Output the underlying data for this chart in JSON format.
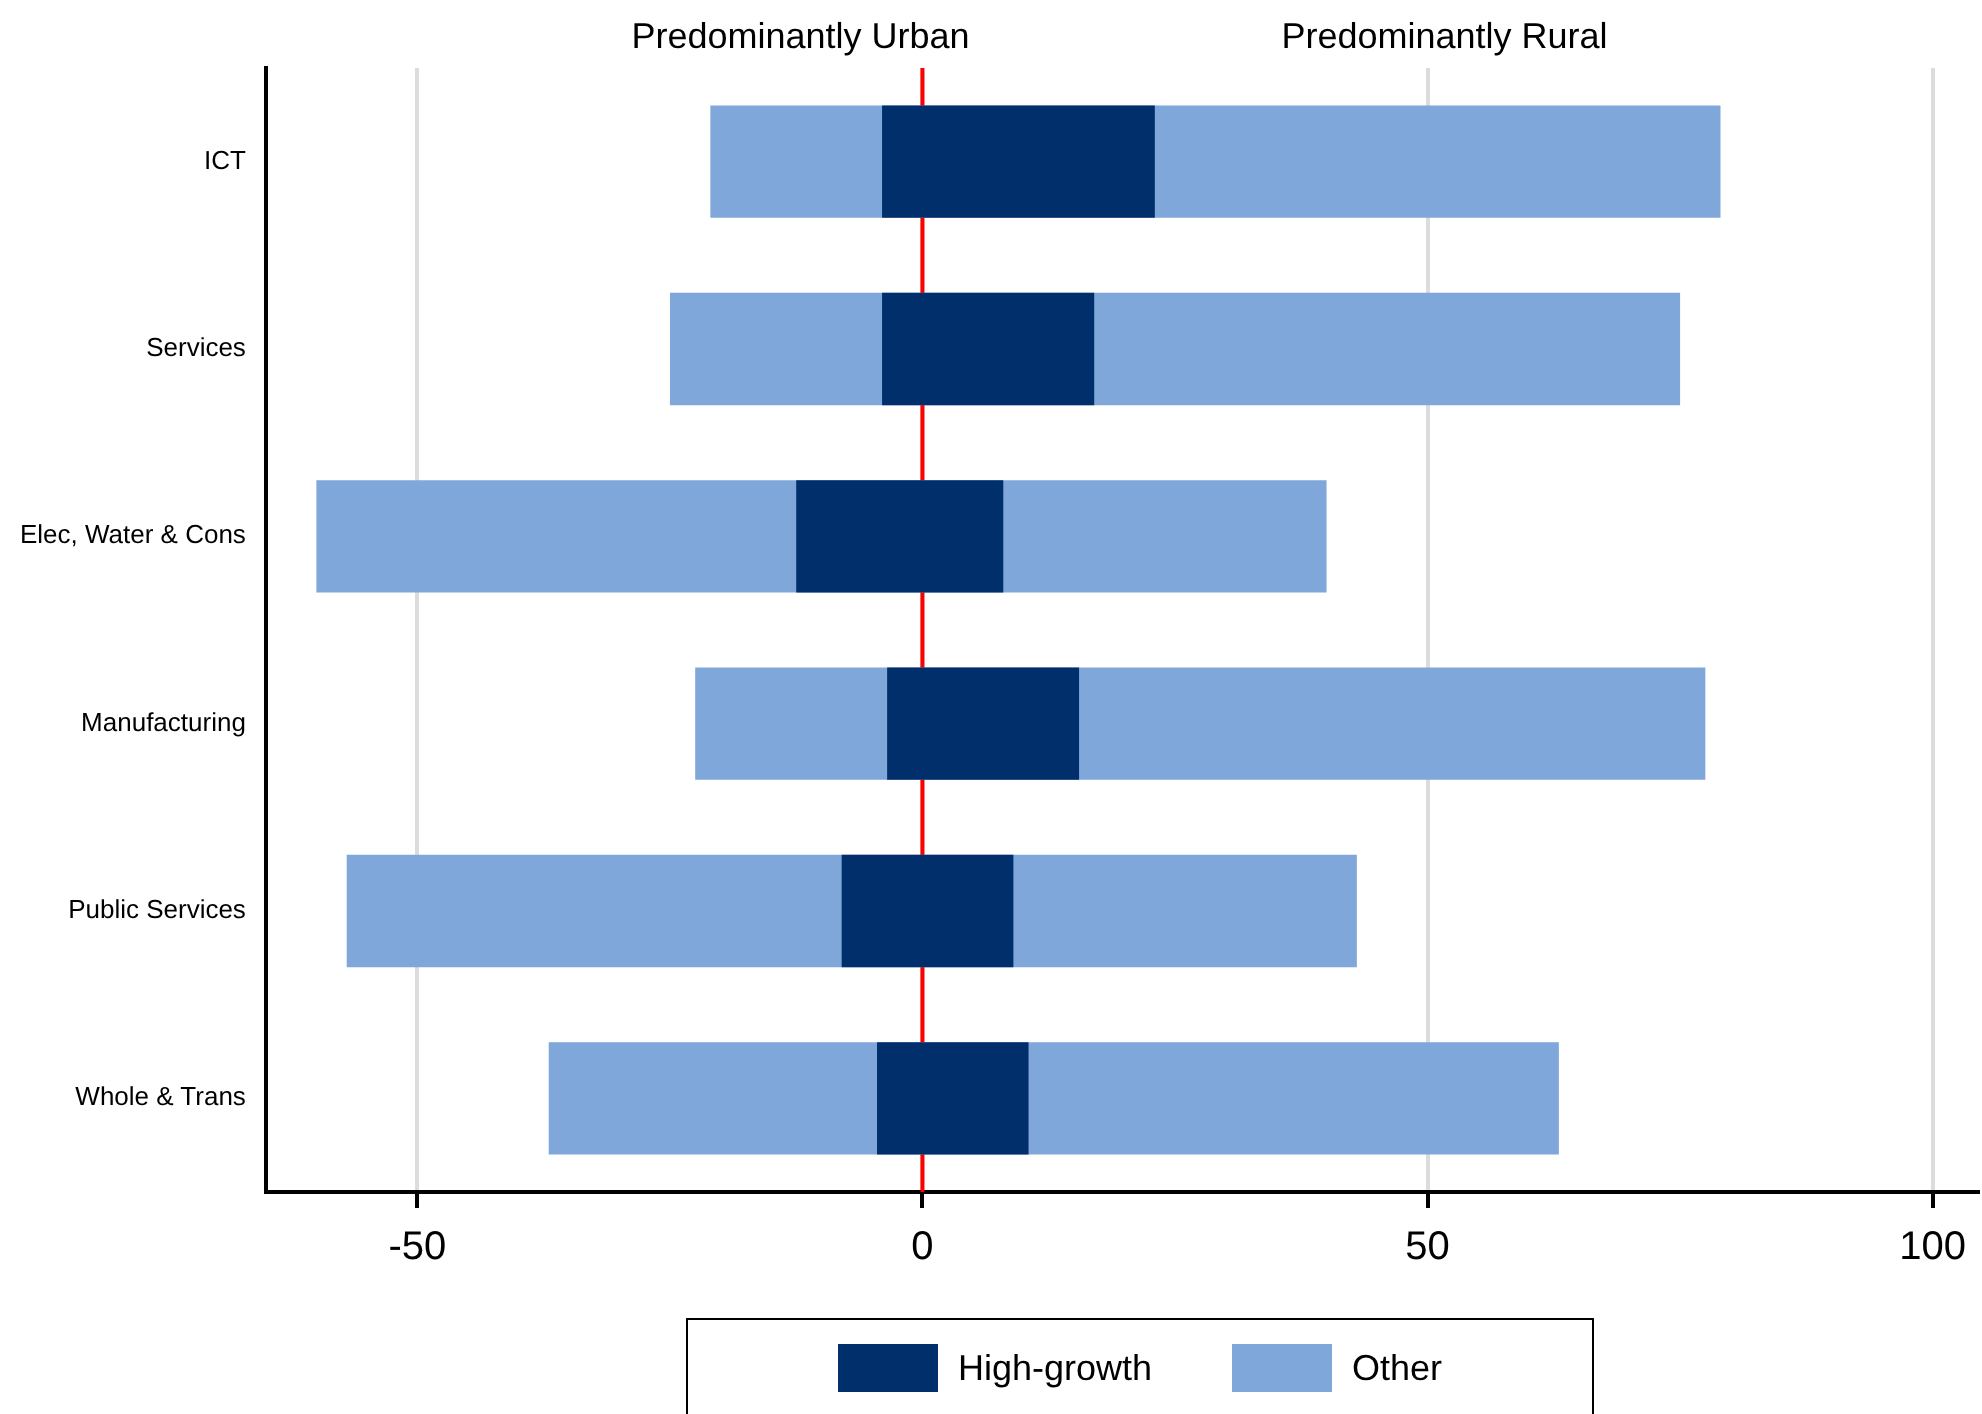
{
  "chart_data": {
    "type": "bar",
    "orientation": "horizontal",
    "categories": [
      "ICT",
      "Services",
      "Elec, Water & Cons",
      "Manufacturing",
      "Public Services",
      "Whole & Trans"
    ],
    "series": [
      {
        "name": "High-growth",
        "color": "#002f6c",
        "base": [
          -4,
          -4,
          -12.5,
          -3.5,
          -8,
          -4.5
        ],
        "values": [
          27,
          21,
          20.5,
          19,
          17,
          15
        ]
      },
      {
        "name": "Other",
        "color": "#7fa7d9",
        "base": [
          -21,
          -25,
          -60,
          -22.5,
          -57,
          -37
        ],
        "values": [
          100,
          100,
          100,
          100,
          100,
          100
        ]
      }
    ],
    "xlim": [
      -65,
      104.5
    ],
    "xticks": [
      -50,
      0,
      50,
      100
    ],
    "ref_lines": [
      {
        "axis": "x",
        "value": 0,
        "color": "#ff0000"
      }
    ],
    "annotations": [
      "Predominantly Urban",
      "Predominantly Rural"
    ],
    "grid": "x",
    "legend": "bottom"
  }
}
